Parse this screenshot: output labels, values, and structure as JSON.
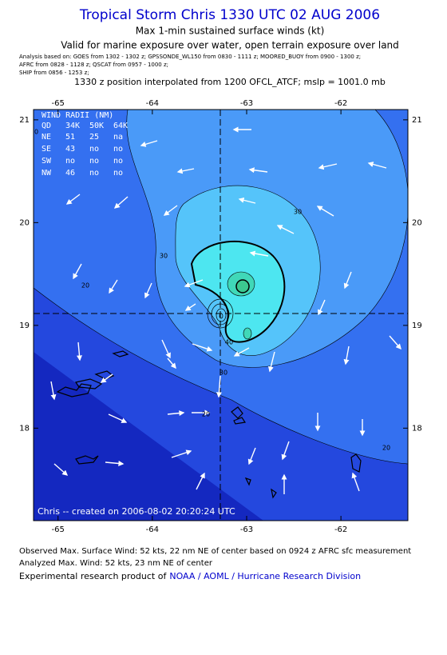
{
  "header": {
    "title": "Tropical Storm Chris 1330 UTC 02 AUG 2006",
    "subtitle": "Max 1-min sustained surface winds (kt)",
    "validity": "Valid for marine exposure over water, open terrain exposure over land",
    "analysis_lines": [
      "Analysis based on:  GOES from 1302 - 1302 z;  GPSSONDE_WL150 from 0830 - 1111 z;  MOORED_BUOY from 0900 - 1300 z;",
      "AFRC from 0828 - 1128 z;  QSCAT from 0957 - 1000 z;",
      "SHIP from 0856 - 1253 z;"
    ],
    "position_note": "1330 z position interpolated from 1200 OFCL_ATCF; mslp = 1001.0 mb"
  },
  "map": {
    "lon_range": [
      -65.26,
      -61.29
    ],
    "lat_range": [
      17.1,
      21.1
    ],
    "lon_ticks": [
      -65,
      -64,
      -63,
      -62
    ],
    "lat_ticks": [
      21,
      20,
      19,
      18
    ],
    "wind_radii": {
      "title": "WIND RADII (NM)",
      "header": [
        "QD",
        "34K",
        "50K",
        "64K"
      ],
      "rows": [
        [
          "NE",
          "51",
          "25",
          "na"
        ],
        [
          "SE",
          "43",
          "no",
          "no"
        ],
        [
          "SW",
          "no",
          "no",
          "no"
        ],
        [
          "NW",
          "46",
          "no",
          "no"
        ]
      ]
    },
    "contour_labels": [
      "30",
      "30",
      "20",
      "40",
      "30",
      "20",
      "20",
      "20"
    ],
    "credit": "Chris -- created on 2006-08-02 20:20:24 UTC"
  },
  "footer": {
    "observed": "Observed Max. Surface Wind: 52 kts, 22 nm NE of center based on 0924 z AFRC sfc measurement",
    "analyzed": "Analyzed Max. Wind: 52 kts, 23 nm NE of center",
    "product_prefix": "Experimental research product of",
    "product_link": "NOAA / AOML / Hurricane Research Division"
  }
}
